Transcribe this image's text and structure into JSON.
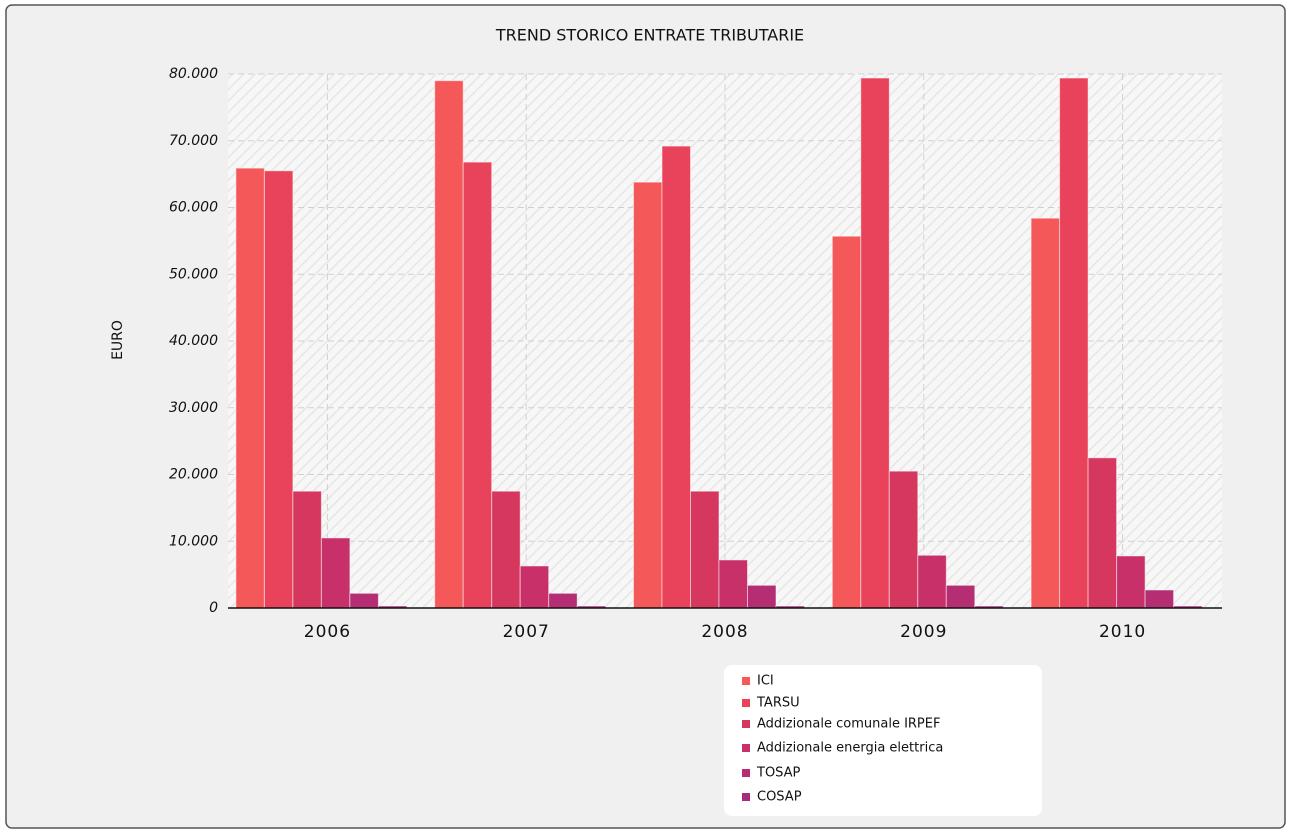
{
  "chart_data": {
    "type": "bar",
    "title": "TREND STORICO ENTRATE TRIBUTARIE",
    "y_label": "EURO",
    "categories": [
      "2006",
      "2007",
      "2008",
      "2009",
      "2010"
    ],
    "series": [
      {
        "name": "ICI",
        "color": "#f55858",
        "values": [
          65900,
          79000,
          63800,
          55700,
          58400
        ]
      },
      {
        "name": "TARSU",
        "color": "#e8435a",
        "values": [
          65500,
          66800,
          69200,
          79400,
          79400
        ]
      },
      {
        "name": "Addizionale comunale IRPEF",
        "color": "#d6375f",
        "values": [
          17500,
          17500,
          17500,
          20500,
          22500
        ]
      },
      {
        "name": "Addizionale energia elettrica",
        "color": "#c8306a",
        "values": [
          10500,
          6300,
          7200,
          7900,
          7800
        ]
      },
      {
        "name": "TOSAP",
        "color": "#b52d72",
        "values": [
          2200,
          2200,
          3400,
          3400,
          2700
        ]
      },
      {
        "name": "COSAP",
        "color": "#a92a7a",
        "values": [
          300,
          300,
          300,
          300,
          300
        ]
      }
    ],
    "ylim": [
      0,
      80000
    ],
    "yticks": [
      0,
      {
        "value": 10000,
        "label": "10.000"
      },
      {
        "value": 20000,
        "label": "20.000"
      },
      {
        "value": 30000,
        "label": "30.000"
      },
      {
        "value": 40000,
        "label": "40.000"
      },
      {
        "value": 50000,
        "label": "50.000"
      },
      {
        "value": 60000,
        "label": "60.000"
      },
      {
        "value": 70000,
        "label": "70.000"
      },
      {
        "value": 80000,
        "label": "80.000"
      }
    ],
    "grid": true,
    "legend": "bottom"
  }
}
